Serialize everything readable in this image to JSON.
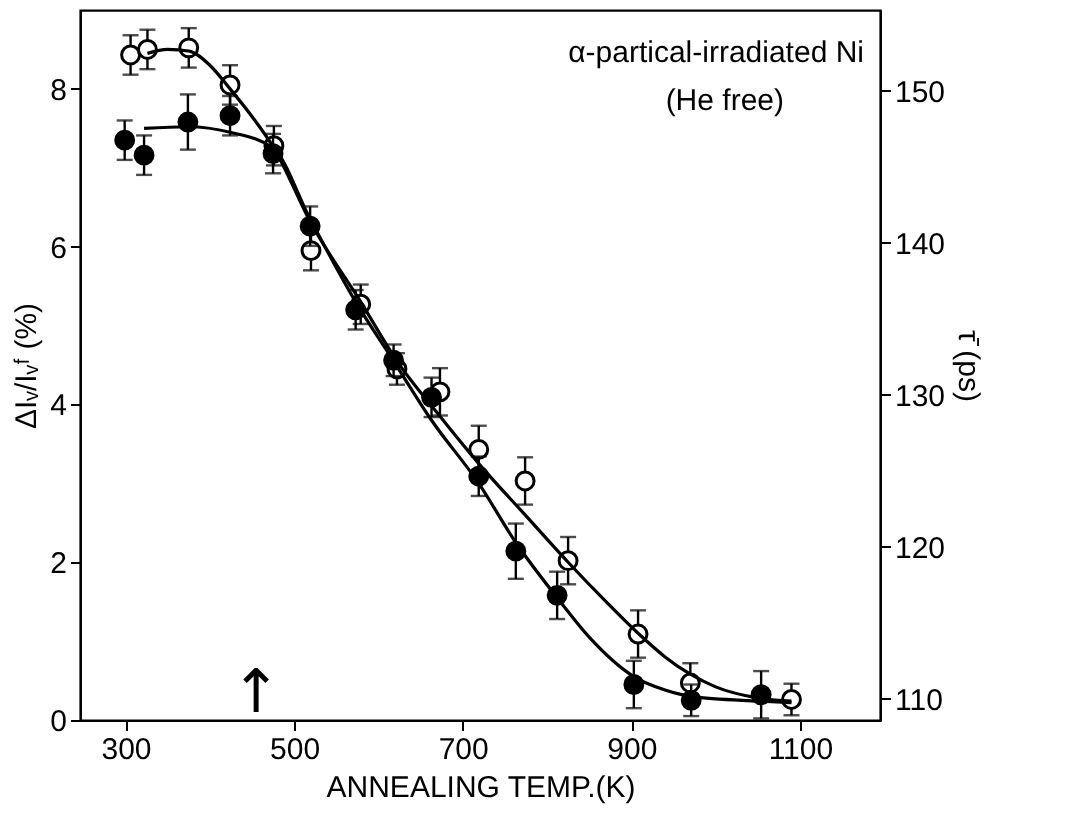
{
  "chart_data": {
    "type": "scatter",
    "xlabel": "ANNEALING TEMP.(K)",
    "ylabel": "ΔIᵥ/Iᵥᶠ (%)",
    "y2label": "τ̄ (ps)",
    "xlim": [
      246,
      1195
    ],
    "xticks": [
      300,
      500,
      700,
      900,
      1100
    ],
    "ylim": [
      0,
      9.0
    ],
    "yticks": [
      0,
      2,
      4,
      6,
      8
    ],
    "y2lim": [
      108.6,
      155.3
    ],
    "y2ticks": [
      110,
      120,
      130,
      140,
      150
    ],
    "grid": false,
    "annotations": [
      "α-partical-irradiated Ni",
      "(He free)",
      "↑"
    ],
    "series": [
      {
        "color": "#ffffff",
        "marker": "circle",
        "x": [
          306,
          326,
          375,
          424,
          476,
          520,
          579,
          622,
          673,
          719,
          774,
          825,
          908,
          970,
          1090
        ],
        "values": [
          8.43,
          8.5,
          8.52,
          8.05,
          7.28,
          5.95,
          5.27,
          4.45,
          4.16,
          3.43,
          3.03,
          2.02,
          1.09,
          0.47,
          0.26
        ],
        "errors": [
          0.25,
          0.25,
          0.25,
          0.25,
          0.25,
          0.25,
          0.25,
          0.2,
          0.3,
          0.3,
          0.3,
          0.3,
          0.3,
          0.25,
          0.2
        ]
      },
      {
        "color": "#000000",
        "marker": "circle",
        "x": [
          299,
          322,
          374,
          424,
          475,
          519,
          573,
          618,
          663,
          719,
          763,
          812,
          903,
          971,
          1054
        ],
        "values": [
          7.35,
          7.16,
          7.58,
          7.66,
          7.18,
          6.26,
          5.2,
          4.56,
          4.09,
          3.09,
          2.14,
          1.58,
          0.45,
          0.25,
          0.32
        ],
        "errors": [
          0.25,
          0.25,
          0.35,
          0.25,
          0.25,
          0.25,
          0.25,
          0.2,
          0.25,
          0.25,
          0.35,
          0.3,
          0.3,
          0.2,
          0.3
        ]
      },
      {
        "type": "line",
        "color": "#000000",
        "x": [
          326,
          350,
          375,
          400,
          424,
          450,
          476,
          520,
          579,
          622,
          673,
          719,
          774,
          825,
          870,
          908,
          940,
          970,
          1000,
          1050,
          1090
        ],
        "values": [
          8.45,
          8.5,
          8.48,
          8.3,
          8.0,
          7.65,
          7.25,
          6.3,
          5.3,
          4.55,
          3.85,
          3.25,
          2.6,
          2.0,
          1.5,
          1.1,
          0.8,
          0.58,
          0.42,
          0.28,
          0.24
        ]
      },
      {
        "type": "line",
        "color": "#000000",
        "x": [
          322,
          374,
          424,
          475,
          519,
          573,
          618,
          663,
          719,
          763,
          812,
          850,
          903,
          940,
          971,
          1050,
          1090
        ],
        "values": [
          7.5,
          7.52,
          7.45,
          7.25,
          6.35,
          5.3,
          4.55,
          3.8,
          3.0,
          2.25,
          1.55,
          1.05,
          0.55,
          0.38,
          0.3,
          0.24,
          0.22
        ]
      }
    ]
  }
}
